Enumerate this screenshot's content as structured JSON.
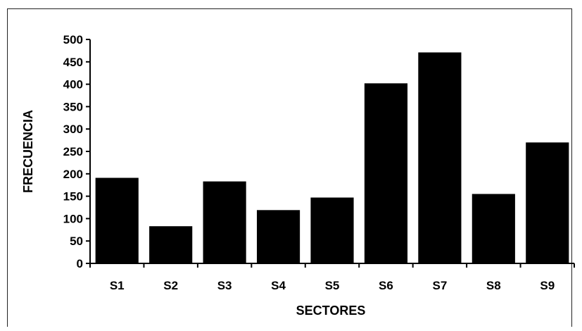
{
  "chart_data": {
    "type": "bar",
    "title": "",
    "xlabel": "SECTORES",
    "ylabel": "FRECUENCIA",
    "categories": [
      "S1",
      "S2",
      "S3",
      "S4",
      "S5",
      "S6",
      "S7",
      "S8",
      "S9"
    ],
    "values": [
      191,
      83,
      183,
      119,
      147,
      402,
      471,
      155,
      270
    ],
    "ylim": [
      0,
      500
    ],
    "yticks": [
      0,
      50,
      100,
      150,
      200,
      250,
      300,
      350,
      400,
      450,
      500
    ],
    "ytick_labels": [
      "0",
      "50",
      "100",
      "150",
      "200",
      "250",
      "300",
      "350",
      "400",
      "450",
      "500"
    ],
    "grid": false,
    "legend": "none",
    "bar_color": "#000000"
  }
}
